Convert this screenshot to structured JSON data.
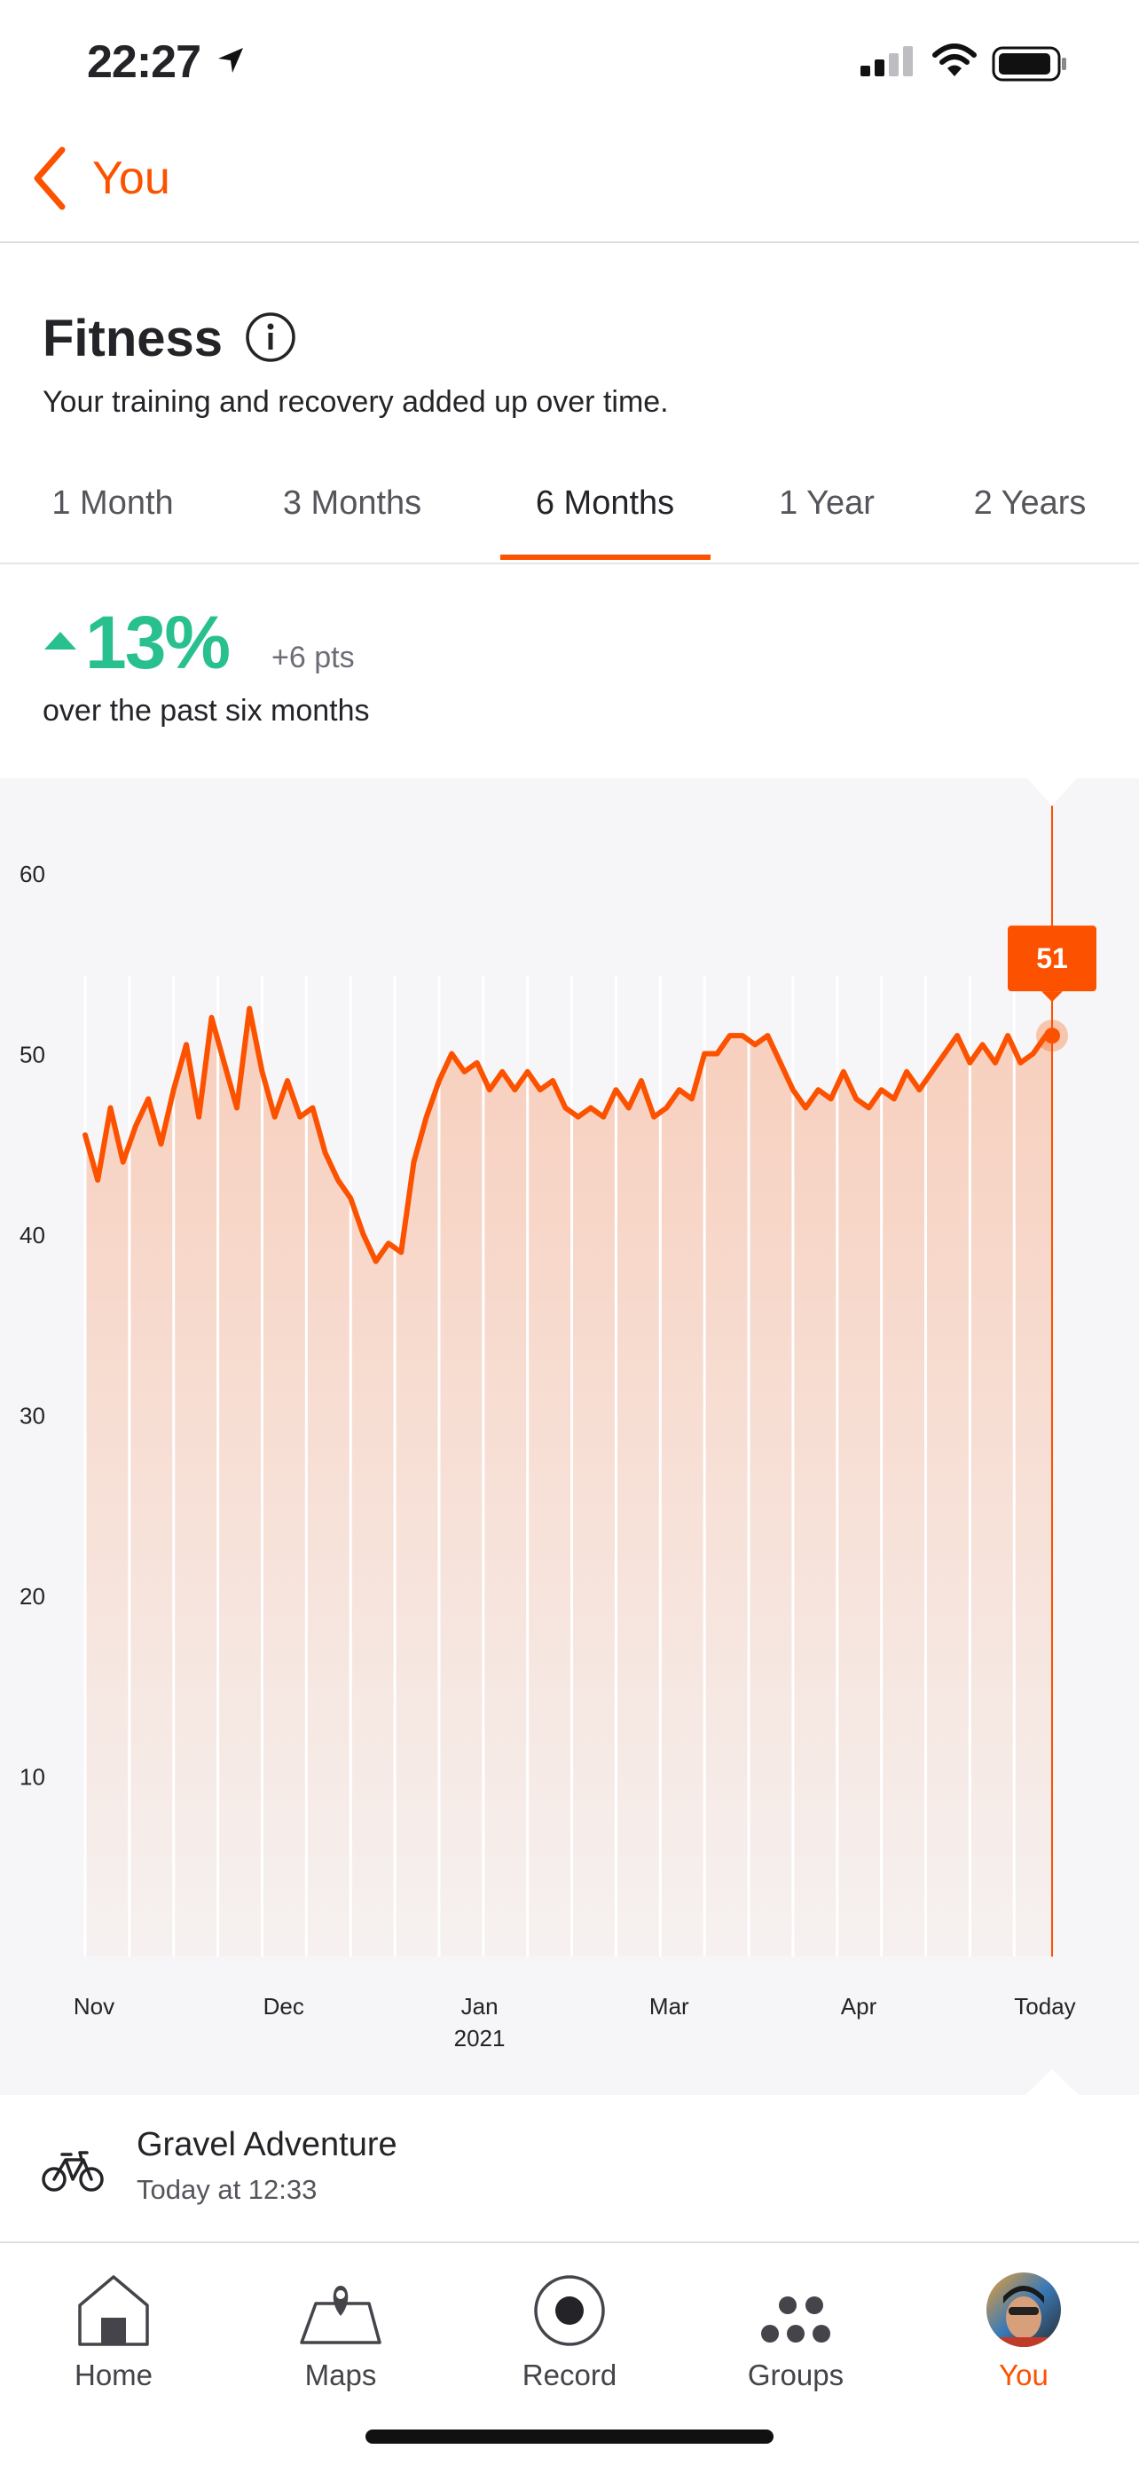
{
  "status_bar": {
    "time": "22:27",
    "icons": [
      "location-arrow-icon",
      "cellular-signal-icon",
      "wifi-icon",
      "battery-icon"
    ]
  },
  "header": {
    "back_label": "You"
  },
  "page": {
    "title": "Fitness",
    "subtitle": "Your training and recovery added up over time."
  },
  "tabs": [
    {
      "label": "1 Month",
      "active": false
    },
    {
      "label": "3 Months",
      "active": false
    },
    {
      "label": "6 Months",
      "active": true
    },
    {
      "label": "1 Year",
      "active": false
    },
    {
      "label": "2 Years",
      "active": false
    }
  ],
  "summary": {
    "percent": "13%",
    "points": "+6 pts",
    "period": "over the past six months",
    "trend_color": "#27c08e"
  },
  "chart_data": {
    "type": "area",
    "ylim": [
      0,
      60
    ],
    "y_ticks": [
      "60",
      "50",
      "40",
      "30",
      "20",
      "10"
    ],
    "x_ticks": [
      {
        "label": "Nov",
        "sub": "",
        "day": 0
      },
      {
        "label": "Dec",
        "sub": "",
        "day": 30
      },
      {
        "label": "Jan",
        "sub": "2021",
        "day": 61
      },
      {
        "label": "Mar",
        "sub": "",
        "day": 91
      },
      {
        "label": "Apr",
        "sub": "",
        "day": 121
      },
      {
        "label": "Today",
        "sub": "",
        "day": 153
      }
    ],
    "x": [
      0,
      2,
      4,
      6,
      8,
      10,
      12,
      14,
      16,
      18,
      20,
      22,
      24,
      26,
      28,
      30,
      32,
      34,
      36,
      38,
      40,
      42,
      44,
      46,
      48,
      50,
      52,
      54,
      56,
      58,
      60,
      62,
      64,
      66,
      68,
      70,
      72,
      74,
      76,
      78,
      80,
      82,
      84,
      86,
      88,
      90,
      92,
      94,
      96,
      98,
      100,
      102,
      104,
      106,
      108,
      110,
      112,
      114,
      116,
      118,
      120,
      122,
      124,
      126,
      128,
      130,
      132,
      134,
      136,
      138,
      140,
      142,
      144,
      146,
      148,
      150,
      152,
      153
    ],
    "values": [
      45.5,
      43,
      47,
      44,
      46,
      47.5,
      45,
      48,
      50.5,
      46.5,
      52,
      49.5,
      47,
      52.5,
      49,
      46.5,
      48.5,
      46.5,
      47,
      44.5,
      43,
      42,
      40,
      38.5,
      39.5,
      39,
      44,
      46.5,
      48.5,
      50,
      49,
      49.5,
      48,
      49,
      48,
      49,
      48,
      48.5,
      47,
      46.5,
      47,
      46.5,
      48,
      47,
      48.5,
      46.5,
      47,
      48,
      47.5,
      50,
      50,
      51,
      51,
      50.5,
      51,
      49.5,
      48,
      47,
      48,
      47.5,
      49,
      47.5,
      47,
      48,
      47.5,
      49,
      48,
      49,
      50,
      51,
      49.5,
      50.5,
      49.5,
      51,
      49.5,
      50,
      51,
      51
    ],
    "current_value": "51",
    "line_color": "#fc5200"
  },
  "activity": {
    "name": "Gravel Adventure",
    "time": "Today at 12:33",
    "icon": "bike-icon"
  },
  "bottom_nav": [
    {
      "label": "Home",
      "icon": "home-icon",
      "active": false
    },
    {
      "label": "Maps",
      "icon": "map-pin-icon",
      "active": false
    },
    {
      "label": "Record",
      "icon": "record-icon",
      "active": false
    },
    {
      "label": "Groups",
      "icon": "groups-icon",
      "active": false
    },
    {
      "label": "You",
      "icon": "avatar",
      "active": true
    }
  ],
  "accent_color": "#fc5200"
}
